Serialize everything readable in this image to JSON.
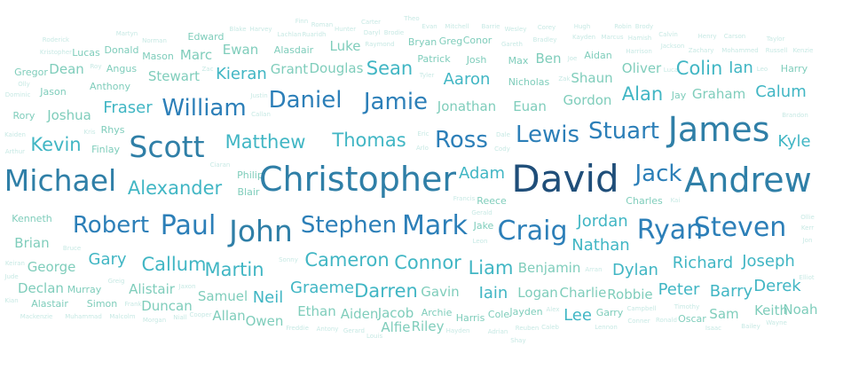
{
  "chart_data": {
    "type": "word-cloud",
    "title": "",
    "colors": {
      "darkest": "#1f4e79",
      "dark": "#2c7fb8",
      "mid": "#41b6c4",
      "light": "#7fcdbb",
      "lightest": "#c7e9e4"
    },
    "words": [
      {
        "text": "Finn",
        "value": 1
      },
      {
        "text": "Theo",
        "value": 1
      },
      {
        "text": "Martyn",
        "value": 1
      },
      {
        "text": "Edward",
        "value": 2
      },
      {
        "text": "Blake",
        "value": 1
      },
      {
        "text": "Harvey",
        "value": 1
      },
      {
        "text": "Roman",
        "value": 1
      },
      {
        "text": "Carter",
        "value": 1
      },
      {
        "text": "Evan",
        "value": 1
      },
      {
        "text": "Mitchell",
        "value": 1
      },
      {
        "text": "Barrie",
        "value": 1
      },
      {
        "text": "Wesley",
        "value": 1
      },
      {
        "text": "Corey",
        "value": 1
      },
      {
        "text": "Hugh",
        "value": 1
      },
      {
        "text": "Robin",
        "value": 1
      },
      {
        "text": "Brody",
        "value": 1
      },
      {
        "text": "Calvin",
        "value": 1
      },
      {
        "text": "Roderick",
        "value": 1
      },
      {
        "text": "Norman",
        "value": 1
      },
      {
        "text": "Lachlan",
        "value": 1
      },
      {
        "text": "Ruaridh",
        "value": 1
      },
      {
        "text": "Hunter",
        "value": 1
      },
      {
        "text": "Daryl",
        "value": 1
      },
      {
        "text": "Brodie",
        "value": 1
      },
      {
        "text": "Henry",
        "value": 1
      },
      {
        "text": "Carson",
        "value": 1
      },
      {
        "text": "Taylor",
        "value": 1
      },
      {
        "text": "Kristopher",
        "value": 1
      },
      {
        "text": "Lucas",
        "value": 2
      },
      {
        "text": "Donald",
        "value": 2
      },
      {
        "text": "Ewan",
        "value": 3
      },
      {
        "text": "Alasdair",
        "value": 2
      },
      {
        "text": "Luke",
        "value": 3
      },
      {
        "text": "Raymond",
        "value": 1
      },
      {
        "text": "Bryan",
        "value": 2
      },
      {
        "text": "Greg",
        "value": 2
      },
      {
        "text": "Conor",
        "value": 2
      },
      {
        "text": "Gareth",
        "value": 1
      },
      {
        "text": "Bradley",
        "value": 1
      },
      {
        "text": "Kayden",
        "value": 1
      },
      {
        "text": "Marcus",
        "value": 1
      },
      {
        "text": "Hamish",
        "value": 1
      },
      {
        "text": "Jackson",
        "value": 1
      },
      {
        "text": "Mason",
        "value": 2
      },
      {
        "text": "Marc",
        "value": 3
      },
      {
        "text": "Patrick",
        "value": 2
      },
      {
        "text": "Josh",
        "value": 2
      },
      {
        "text": "Max",
        "value": 2
      },
      {
        "text": "Ben",
        "value": 3
      },
      {
        "text": "Joe",
        "value": 1
      },
      {
        "text": "Aidan",
        "value": 2
      },
      {
        "text": "Harrison",
        "value": 1
      },
      {
        "text": "Zachary",
        "value": 1
      },
      {
        "text": "Mohammed",
        "value": 1
      },
      {
        "text": "Russell",
        "value": 1
      },
      {
        "text": "Kenzie",
        "value": 1
      },
      {
        "text": "Gregor",
        "value": 2
      },
      {
        "text": "Dean",
        "value": 3
      },
      {
        "text": "Roy",
        "value": 1
      },
      {
        "text": "Angus",
        "value": 2
      },
      {
        "text": "Stewart",
        "value": 3
      },
      {
        "text": "Zac",
        "value": 1
      },
      {
        "text": "Kieran",
        "value": 4
      },
      {
        "text": "Grant",
        "value": 3
      },
      {
        "text": "Douglas",
        "value": 3
      },
      {
        "text": "Sean",
        "value": 5
      },
      {
        "text": "Tyler",
        "value": 1
      },
      {
        "text": "Aaron",
        "value": 4
      },
      {
        "text": "Nicholas",
        "value": 2
      },
      {
        "text": "Zak",
        "value": 1
      },
      {
        "text": "Shaun",
        "value": 3
      },
      {
        "text": "Oliver",
        "value": 3
      },
      {
        "text": "Luca",
        "value": 1
      },
      {
        "text": "Colin",
        "value": 5
      },
      {
        "text": "Ian",
        "value": 4
      },
      {
        "text": "Leo",
        "value": 1
      },
      {
        "text": "Harry",
        "value": 2
      },
      {
        "text": "Olly",
        "value": 1
      },
      {
        "text": "Anthony",
        "value": 2
      },
      {
        "text": "Jason",
        "value": 2
      },
      {
        "text": "Dominic",
        "value": 1
      },
      {
        "text": "Justin",
        "value": 1
      },
      {
        "text": "Daniel",
        "value": 6
      },
      {
        "text": "Jamie",
        "value": 6
      },
      {
        "text": "Jonathan",
        "value": 3
      },
      {
        "text": "Euan",
        "value": 3
      },
      {
        "text": "Gordon",
        "value": 3
      },
      {
        "text": "Alan",
        "value": 5
      },
      {
        "text": "Jay",
        "value": 2
      },
      {
        "text": "Graham",
        "value": 3
      },
      {
        "text": "Calum",
        "value": 4
      },
      {
        "text": "Rory",
        "value": 2
      },
      {
        "text": "Joshua",
        "value": 3
      },
      {
        "text": "Fraser",
        "value": 4
      },
      {
        "text": "William",
        "value": 6
      },
      {
        "text": "Callan",
        "value": 1
      },
      {
        "text": "Brandon",
        "value": 1
      },
      {
        "text": "Kaiden",
        "value": 1
      },
      {
        "text": "Kris",
        "value": 1
      },
      {
        "text": "Rhys",
        "value": 2
      },
      {
        "text": "Arthur",
        "value": 1
      },
      {
        "text": "Kevin",
        "value": 5
      },
      {
        "text": "Finlay",
        "value": 2
      },
      {
        "text": "Scott",
        "value": 8
      },
      {
        "text": "Matthew",
        "value": 5
      },
      {
        "text": "Thomas",
        "value": 5
      },
      {
        "text": "Eric",
        "value": 1
      },
      {
        "text": "Arlo",
        "value": 1
      },
      {
        "text": "Ross",
        "value": 6
      },
      {
        "text": "Dale",
        "value": 1
      },
      {
        "text": "Cody",
        "value": 1
      },
      {
        "text": "Lewis",
        "value": 6
      },
      {
        "text": "Stuart",
        "value": 6
      },
      {
        "text": "James",
        "value": 9
      },
      {
        "text": "Kyle",
        "value": 4
      },
      {
        "text": "Ciaran",
        "value": 1
      },
      {
        "text": "Philip",
        "value": 2
      },
      {
        "text": "Michael",
        "value": 8
      },
      {
        "text": "Alexander",
        "value": 5
      },
      {
        "text": "Blair",
        "value": 2
      },
      {
        "text": "Christopher",
        "value": 9
      },
      {
        "text": "Adam",
        "value": 4
      },
      {
        "text": "David",
        "value": 10
      },
      {
        "text": "Jack",
        "value": 6
      },
      {
        "text": "Andrew",
        "value": 9
      },
      {
        "text": "Francis",
        "value": 1
      },
      {
        "text": "Reece",
        "value": 2
      },
      {
        "text": "Charles",
        "value": 2
      },
      {
        "text": "Kai",
        "value": 1
      },
      {
        "text": "Kenneth",
        "value": 2
      },
      {
        "text": "Robert",
        "value": 6
      },
      {
        "text": "Paul",
        "value": 7
      },
      {
        "text": "John",
        "value": 8
      },
      {
        "text": "Stephen",
        "value": 6
      },
      {
        "text": "Mark",
        "value": 7
      },
      {
        "text": "Gerald",
        "value": 1
      },
      {
        "text": "Jake",
        "value": 2
      },
      {
        "text": "Craig",
        "value": 7
      },
      {
        "text": "Jordan",
        "value": 4
      },
      {
        "text": "Ryan",
        "value": 7
      },
      {
        "text": "Steven",
        "value": 7
      },
      {
        "text": "Ollie",
        "value": 1
      },
      {
        "text": "Kerr",
        "value": 1
      },
      {
        "text": "Brian",
        "value": 3
      },
      {
        "text": "Bruce",
        "value": 1
      },
      {
        "text": "Leon",
        "value": 1
      },
      {
        "text": "Nathan",
        "value": 4
      },
      {
        "text": "Jon",
        "value": 1
      },
      {
        "text": "Gary",
        "value": 4
      },
      {
        "text": "Callum",
        "value": 5
      },
      {
        "text": "Sonny",
        "value": 1
      },
      {
        "text": "Cameron",
        "value": 5
      },
      {
        "text": "Connor",
        "value": 5
      },
      {
        "text": "Liam",
        "value": 5
      },
      {
        "text": "Benjamin",
        "value": 3
      },
      {
        "text": "Arran",
        "value": 1
      },
      {
        "text": "Dylan",
        "value": 4
      },
      {
        "text": "Richard",
        "value": 4
      },
      {
        "text": "Joseph",
        "value": 4
      },
      {
        "text": "Keiran",
        "value": 1
      },
      {
        "text": "George",
        "value": 3
      },
      {
        "text": "Martin",
        "value": 5
      },
      {
        "text": "Jude",
        "value": 1
      },
      {
        "text": "Greig",
        "value": 1
      },
      {
        "text": "Declan",
        "value": 3
      },
      {
        "text": "Murray",
        "value": 2
      },
      {
        "text": "Alistair",
        "value": 3
      },
      {
        "text": "Jaxon",
        "value": 1
      },
      {
        "text": "Graeme",
        "value": 4
      },
      {
        "text": "Darren",
        "value": 5
      },
      {
        "text": "Gavin",
        "value": 3
      },
      {
        "text": "Elliot",
        "value": 1
      },
      {
        "text": "Samuel",
        "value": 3
      },
      {
        "text": "Neil",
        "value": 4
      },
      {
        "text": "Iain",
        "value": 4
      },
      {
        "text": "Logan",
        "value": 3
      },
      {
        "text": "Charlie",
        "value": 3
      },
      {
        "text": "Robbie",
        "value": 3
      },
      {
        "text": "Peter",
        "value": 4
      },
      {
        "text": "Barry",
        "value": 4
      },
      {
        "text": "Derek",
        "value": 4
      },
      {
        "text": "Kian",
        "value": 1
      },
      {
        "text": "Alastair",
        "value": 2
      },
      {
        "text": "Simon",
        "value": 2
      },
      {
        "text": "Frank",
        "value": 1
      },
      {
        "text": "Duncan",
        "value": 3
      },
      {
        "text": "Timothy",
        "value": 1
      },
      {
        "text": "Campbell",
        "value": 1
      },
      {
        "text": "Mackenzie",
        "value": 1
      },
      {
        "text": "Muhammad",
        "value": 1
      },
      {
        "text": "Malcolm",
        "value": 1
      },
      {
        "text": "Morgan",
        "value": 1
      },
      {
        "text": "Niall",
        "value": 1
      },
      {
        "text": "Cooper",
        "value": 1
      },
      {
        "text": "Allan",
        "value": 3
      },
      {
        "text": "Owen",
        "value": 3
      },
      {
        "text": "Ethan",
        "value": 3
      },
      {
        "text": "Aiden",
        "value": 3
      },
      {
        "text": "Jacob",
        "value": 3
      },
      {
        "text": "Archie",
        "value": 2
      },
      {
        "text": "Harris",
        "value": 2
      },
      {
        "text": "Cole",
        "value": 2
      },
      {
        "text": "Jayden",
        "value": 2
      },
      {
        "text": "Alex",
        "value": 1
      },
      {
        "text": "Lee",
        "value": 4
      },
      {
        "text": "Garry",
        "value": 2
      },
      {
        "text": "Conner",
        "value": 1
      },
      {
        "text": "Ronald",
        "value": 1
      },
      {
        "text": "Oscar",
        "value": 2
      },
      {
        "text": "Sam",
        "value": 3
      },
      {
        "text": "Keith",
        "value": 3
      },
      {
        "text": "Noah",
        "value": 3
      },
      {
        "text": "Freddie",
        "value": 1
      },
      {
        "text": "Antony",
        "value": 1
      },
      {
        "text": "Gerard",
        "value": 1
      },
      {
        "text": "Louis",
        "value": 1
      },
      {
        "text": "Alfie",
        "value": 3
      },
      {
        "text": "Riley",
        "value": 3
      },
      {
        "text": "Hayden",
        "value": 1
      },
      {
        "text": "Adrian",
        "value": 1
      },
      {
        "text": "Reuben",
        "value": 1
      },
      {
        "text": "Caleb",
        "value": 1
      },
      {
        "text": "Lennon",
        "value": 1
      },
      {
        "text": "Isaac",
        "value": 1
      },
      {
        "text": "Bailey",
        "value": 1
      },
      {
        "text": "Wayne",
        "value": 1
      },
      {
        "text": "Shay",
        "value": 1
      }
    ]
  }
}
